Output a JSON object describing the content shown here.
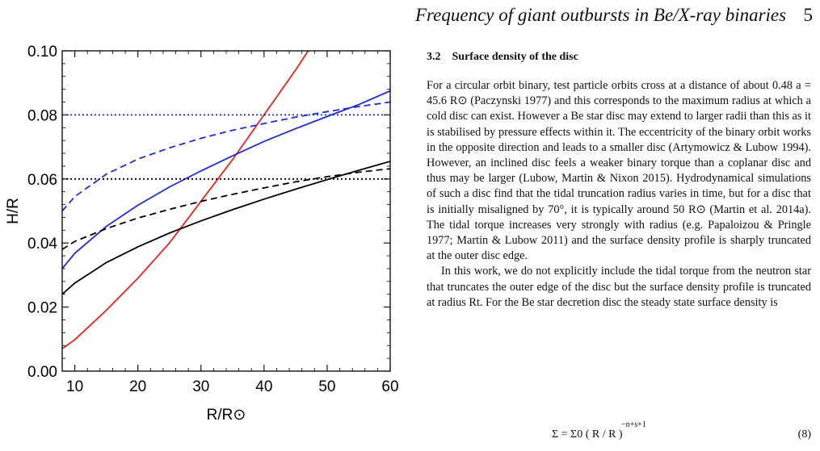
{
  "header": {
    "title": "Frequency of giant outbursts in Be/X-ray binaries",
    "page_number": "5"
  },
  "chart_data": {
    "type": "line",
    "title": "",
    "xlabel": "R/R⊙",
    "ylabel": "H/R",
    "xlim": [
      8,
      60
    ],
    "ylim": [
      0.0,
      0.1
    ],
    "x_ticks": [
      "10",
      "20",
      "30",
      "40",
      "50",
      "60"
    ],
    "y_ticks": [
      "0.00",
      "0.02",
      "0.04",
      "0.06",
      "0.08",
      "0.10"
    ],
    "grid": false,
    "legend": "none",
    "series": [
      {
        "color": "#e8201e",
        "style": "solid",
        "x": [
          8,
          10,
          15,
          20,
          25,
          30,
          35,
          40,
          45,
          47
        ],
        "y": [
          0.007,
          0.0098,
          0.019,
          0.029,
          0.04,
          0.053,
          0.066,
          0.08,
          0.094,
          0.1
        ]
      },
      {
        "color": "#1f2bd8",
        "style": "solid",
        "x": [
          8,
          10,
          15,
          20,
          25,
          30,
          35,
          40,
          45,
          50,
          55,
          60
        ],
        "y": [
          0.032,
          0.0368,
          0.0452,
          0.0518,
          0.0575,
          0.0625,
          0.0672,
          0.0717,
          0.0757,
          0.0795,
          0.0832,
          0.0875
        ]
      },
      {
        "color": "#1f2bd8",
        "style": "dashed",
        "x": [
          8,
          10,
          15,
          20,
          25,
          30,
          35,
          40,
          45,
          50,
          55,
          60
        ],
        "y": [
          0.05,
          0.0545,
          0.0615,
          0.0662,
          0.0697,
          0.0727,
          0.0752,
          0.0773,
          0.0793,
          0.081,
          0.0826,
          0.084
        ]
      },
      {
        "color": "#1f2bd8",
        "style": "dotted",
        "x": [
          8,
          60
        ],
        "y": [
          0.08,
          0.08
        ]
      },
      {
        "color": "#000000",
        "style": "solid",
        "x": [
          8,
          10,
          15,
          20,
          25,
          30,
          35,
          40,
          45,
          50,
          55,
          60
        ],
        "y": [
          0.024,
          0.0275,
          0.0339,
          0.0388,
          0.0431,
          0.0469,
          0.0504,
          0.0537,
          0.0568,
          0.0598,
          0.0627,
          0.0655
        ]
      },
      {
        "color": "#000000",
        "style": "dashed",
        "x": [
          8,
          10,
          15,
          20,
          25,
          30,
          35,
          40,
          45,
          50,
          55,
          60
        ],
        "y": [
          0.038,
          0.0405,
          0.0445,
          0.0478,
          0.0505,
          0.053,
          0.0552,
          0.0572,
          0.0591,
          0.0607,
          0.0621,
          0.0632
        ]
      },
      {
        "color": "#000000",
        "style": "dotted",
        "x": [
          8,
          60
        ],
        "y": [
          0.06,
          0.06
        ]
      }
    ]
  },
  "section": {
    "number": "3.2",
    "title": "Surface density of the disc",
    "paragraphs": [
      "For a circular orbit binary, test particle orbits cross at a distance of about 0.48 a = 45.6 R⊙ (Paczynski 1977) and this corresponds to the maximum radius at which a cold disc can exist. However a Be star disc may extend to larger radii than this as it is stabilised by pressure effects within it. The eccentricity of the binary orbit works in the opposite direction and leads to a smaller disc (Artymowicz & Lubow 1994). However, an inclined disc feels a weaker binary torque than a coplanar disc and thus may be larger (Lubow, Martin & Nixon 2015). Hydrodynamical simulations of such a disc find that the tidal truncation radius varies in time, but for a disc that is initially misaligned by 70°, it is typically around 50 R⊙ (Martin et al. 2014a). The tidal torque increases very strongly with radius (e.g. Papaloizou & Pringle 1977; Martin & Lubow 2011) and the surface density profile is sharply truncated at the outer disc edge.",
      "In this work, we do not explicitly include the tidal torque from the neutron star that truncates the outer edge of the disc but the surface density profile is truncated at radius Rt. For the Be star decretion disc the steady state surface density is"
    ]
  },
  "equation": {
    "body": "Σ = Σ0 ( R / R )",
    "exponent": "−n+s+1",
    "number": "(8)"
  }
}
